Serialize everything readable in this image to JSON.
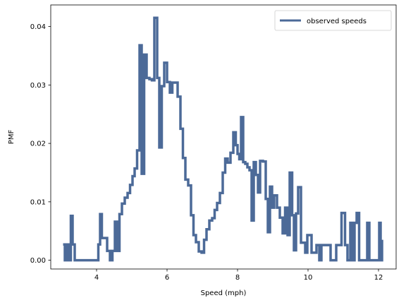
{
  "chart_data": {
    "type": "line",
    "drawstyle": "steps",
    "xlabel": "Speed (mph)",
    "ylabel": "PMF",
    "xlim": [
      2.7,
      12.5
    ],
    "ylim": [
      -0.0015,
      0.0437
    ],
    "xticks": [
      4,
      6,
      8,
      10,
      12
    ],
    "yticks": [
      0.0,
      0.01,
      0.02,
      0.03,
      0.04
    ],
    "ytick_labels": [
      "0.00",
      "0.01",
      "0.02",
      "0.03",
      "0.04"
    ],
    "grid": false,
    "legend_position": "top-right",
    "series": [
      {
        "name": "observed speeds",
        "color": "#4c6a98",
        "points": [
          [
            3.05,
            0.0027
          ],
          [
            3.1,
            0.0
          ],
          [
            3.15,
            0.0027
          ],
          [
            3.2,
            0.0
          ],
          [
            3.27,
            0.0076
          ],
          [
            3.32,
            0.0027
          ],
          [
            3.38,
            0.0
          ],
          [
            3.55,
            0.0
          ],
          [
            3.8,
            0.0
          ],
          [
            4.0,
            0.0
          ],
          [
            4.05,
            0.0027
          ],
          [
            4.1,
            0.0079
          ],
          [
            4.15,
            0.0038
          ],
          [
            4.25,
            0.0038
          ],
          [
            4.3,
            0.0016
          ],
          [
            4.38,
            0.0
          ],
          [
            4.45,
            0.0016
          ],
          [
            4.52,
            0.0066
          ],
          [
            4.58,
            0.0016
          ],
          [
            4.65,
            0.0079
          ],
          [
            4.72,
            0.0097
          ],
          [
            4.8,
            0.0107
          ],
          [
            4.88,
            0.0115
          ],
          [
            4.95,
            0.0129
          ],
          [
            5.02,
            0.0144
          ],
          [
            5.08,
            0.0157
          ],
          [
            5.15,
            0.0188
          ],
          [
            5.22,
            0.0368
          ],
          [
            5.28,
            0.0148
          ],
          [
            5.35,
            0.0352
          ],
          [
            5.42,
            0.0312
          ],
          [
            5.5,
            0.031
          ],
          [
            5.57,
            0.0308
          ],
          [
            5.64,
            0.0415
          ],
          [
            5.72,
            0.0312
          ],
          [
            5.78,
            0.0193
          ],
          [
            5.85,
            0.0298
          ],
          [
            5.92,
            0.0338
          ],
          [
            6.0,
            0.0305
          ],
          [
            6.08,
            0.0287
          ],
          [
            6.15,
            0.0304
          ],
          [
            6.22,
            0.0304
          ],
          [
            6.3,
            0.028
          ],
          [
            6.38,
            0.0225
          ],
          [
            6.45,
            0.0175
          ],
          [
            6.52,
            0.0138
          ],
          [
            6.6,
            0.0128
          ],
          [
            6.68,
            0.0077
          ],
          [
            6.75,
            0.0043
          ],
          [
            6.82,
            0.0031
          ],
          [
            6.9,
            0.0015
          ],
          [
            6.98,
            0.0013
          ],
          [
            7.05,
            0.0035
          ],
          [
            7.12,
            0.0053
          ],
          [
            7.2,
            0.0068
          ],
          [
            7.28,
            0.0072
          ],
          [
            7.35,
            0.0086
          ],
          [
            7.42,
            0.0098
          ],
          [
            7.5,
            0.0115
          ],
          [
            7.58,
            0.015
          ],
          [
            7.65,
            0.0174
          ],
          [
            7.72,
            0.0167
          ],
          [
            7.8,
            0.0184
          ],
          [
            7.88,
            0.0219
          ],
          [
            7.95,
            0.0197
          ],
          [
            8.0,
            0.0182
          ],
          [
            8.05,
            0.0173
          ],
          [
            8.1,
            0.0245
          ],
          [
            8.16,
            0.0168
          ],
          [
            8.22,
            0.0165
          ],
          [
            8.28,
            0.0159
          ],
          [
            8.34,
            0.0154
          ],
          [
            8.4,
            0.0068
          ],
          [
            8.46,
            0.0168
          ],
          [
            8.52,
            0.0146
          ],
          [
            8.58,
            0.0116
          ],
          [
            8.64,
            0.017
          ],
          [
            8.72,
            0.0169
          ],
          [
            8.8,
            0.0105
          ],
          [
            8.86,
            0.0048
          ],
          [
            8.92,
            0.0126
          ],
          [
            8.98,
            0.009
          ],
          [
            9.04,
            0.0111
          ],
          [
            9.12,
            0.009
          ],
          [
            9.2,
            0.0073
          ],
          [
            9.28,
            0.0046
          ],
          [
            9.35,
            0.009
          ],
          [
            9.42,
            0.0043
          ],
          [
            9.48,
            0.015
          ],
          [
            9.55,
            0.0077
          ],
          [
            9.6,
            0.0017
          ],
          [
            9.66,
            0.008
          ],
          [
            9.72,
            0.0125
          ],
          [
            9.8,
            0.003
          ],
          [
            9.86,
            0.003
          ],
          [
            9.92,
            0.0013
          ],
          [
            9.98,
            0.0043
          ],
          [
            10.04,
            0.0043
          ],
          [
            10.1,
            0.0013
          ],
          [
            10.18,
            0.0013
          ],
          [
            10.24,
            0.0026
          ],
          [
            10.32,
            0.0
          ],
          [
            10.38,
            0.0026
          ],
          [
            10.45,
            0.0026
          ],
          [
            10.55,
            0.0026
          ],
          [
            10.64,
            0.0
          ],
          [
            10.72,
            0.0
          ],
          [
            10.8,
            0.0026
          ],
          [
            10.88,
            0.0026
          ],
          [
            10.95,
            0.0081
          ],
          [
            11.05,
            0.0026
          ],
          [
            11.12,
            0.0
          ],
          [
            11.2,
            0.0064
          ],
          [
            11.26,
            0.0
          ],
          [
            11.32,
            0.0064
          ],
          [
            11.38,
            0.0081
          ],
          [
            11.45,
            0.0
          ],
          [
            11.6,
            0.0
          ],
          [
            11.68,
            0.0064
          ],
          [
            11.74,
            0.0
          ],
          [
            11.8,
            0.0
          ],
          [
            11.9,
            0.0
          ],
          [
            12.02,
            0.0064
          ],
          [
            12.06,
            0.0
          ],
          [
            12.1,
            0.0035
          ]
        ]
      }
    ]
  }
}
